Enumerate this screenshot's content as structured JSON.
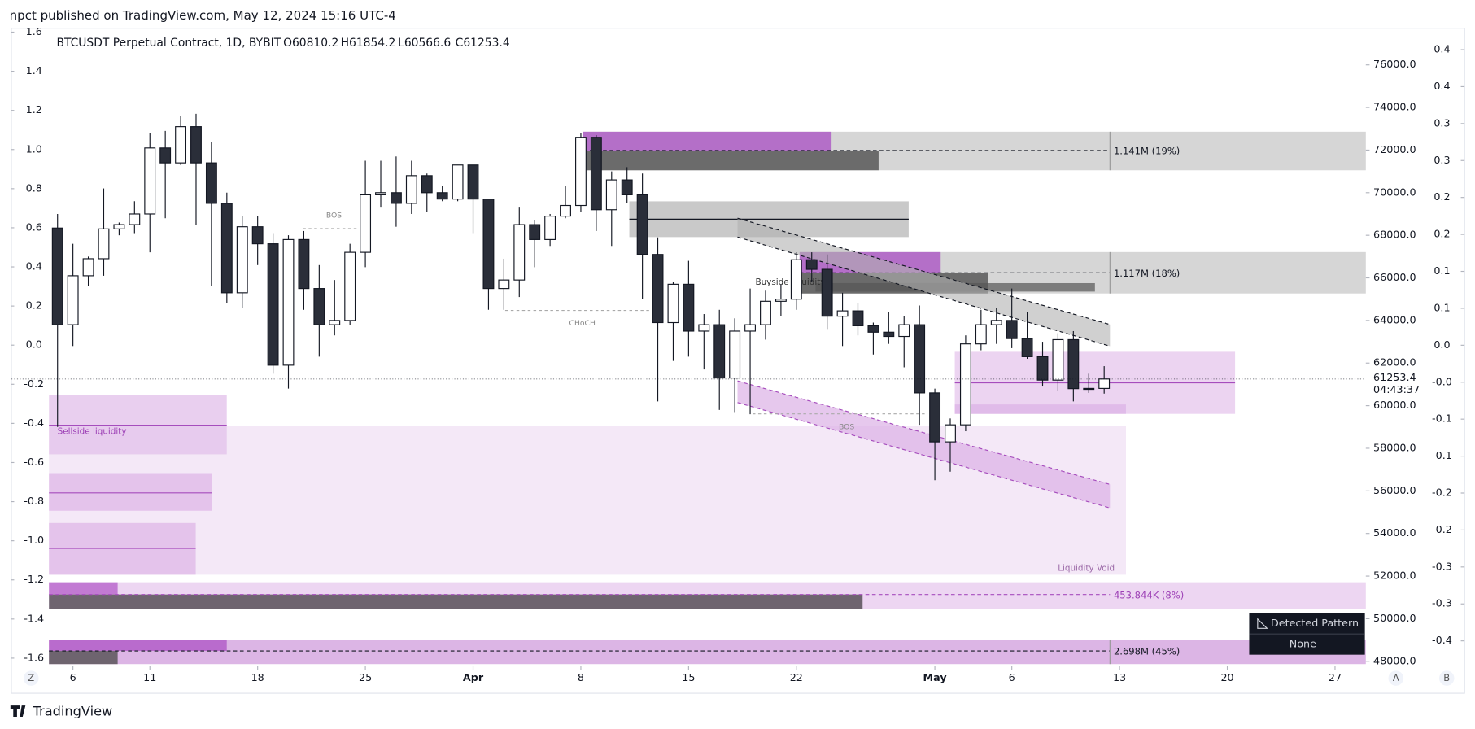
{
  "header": {
    "published": "npct published on TradingView.com, May 12, 2024 15:16 UTC-4",
    "symbol": "BTCUSDT Perpetual Contract, 1D, BYBIT",
    "ohlc": [
      "O60810.2",
      "H61854.2",
      "L60566.6",
      "C61253.4"
    ]
  },
  "chart_data": {
    "type": "candlestick",
    "x": [
      "2024-03-05",
      "2024-03-06",
      "2024-03-07",
      "2024-03-08",
      "2024-03-09",
      "2024-03-10",
      "2024-03-11",
      "2024-03-12",
      "2024-03-13",
      "2024-03-14",
      "2024-03-15",
      "2024-03-16",
      "2024-03-17",
      "2024-03-18",
      "2024-03-19",
      "2024-03-20",
      "2024-03-21",
      "2024-03-22",
      "2024-03-23",
      "2024-03-24",
      "2024-03-25",
      "2024-03-26",
      "2024-03-27",
      "2024-03-28",
      "2024-03-29",
      "2024-03-30",
      "2024-03-31",
      "2024-04-01",
      "2024-04-02",
      "2024-04-03",
      "2024-04-04",
      "2024-04-05",
      "2024-04-06",
      "2024-04-07",
      "2024-04-08",
      "2024-04-09",
      "2024-04-10",
      "2024-04-11",
      "2024-04-12",
      "2024-04-13",
      "2024-04-14",
      "2024-04-15",
      "2024-04-16",
      "2024-04-17",
      "2024-04-18",
      "2024-04-19",
      "2024-04-20",
      "2024-04-21",
      "2024-04-22",
      "2024-04-23",
      "2024-04-24",
      "2024-04-25",
      "2024-04-26",
      "2024-04-27",
      "2024-04-28",
      "2024-04-29",
      "2024-04-30",
      "2024-05-01",
      "2024-05-02",
      "2024-05-03",
      "2024-05-04",
      "2024-05-05",
      "2024-05-06",
      "2024-05-07",
      "2024-05-08",
      "2024-05-09",
      "2024-05-10",
      "2024-05-11",
      "2024-05-12"
    ],
    "open": [
      68340,
      63800,
      66100,
      66900,
      68300,
      68500,
      69000,
      72100,
      71400,
      73100,
      71400,
      69500,
      65300,
      68400,
      67600,
      61900,
      67800,
      65500,
      63800,
      64000,
      67200,
      69900,
      70000,
      69500,
      70800,
      70000,
      69700,
      71300,
      69700,
      65500,
      65900,
      68500,
      67800,
      68900,
      69400,
      72600,
      69200,
      70600,
      69900,
      67100,
      63900,
      65700,
      63500,
      63800,
      61300,
      63500,
      63800,
      64900,
      65000,
      66850,
      66400,
      64200,
      64450,
      63750,
      63450,
      63250,
      63800,
      60600,
      58300,
      59100,
      62900,
      63800,
      64000,
      63150,
      62300,
      61200,
      63100,
      60800,
      60810.2
    ],
    "high": [
      69000,
      67600,
      67000,
      70200,
      68600,
      69600,
      72800,
      72900,
      73600,
      73700,
      72400,
      70000,
      68900,
      68900,
      68100,
      68000,
      68200,
      66600,
      65900,
      67600,
      71500,
      71500,
      71700,
      71500,
      70900,
      70300,
      71300,
      71300,
      69700,
      66900,
      69300,
      68700,
      69000,
      70300,
      72800,
      72700,
      71000,
      71200,
      70900,
      67900,
      65800,
      66800,
      64300,
      64500,
      64100,
      65500,
      65400,
      65700,
      67200,
      67200,
      67100,
      65300,
      64800,
      63900,
      64400,
      64200,
      64700,
      60800,
      59400,
      63300,
      64500,
      64600,
      65500,
      64400,
      63000,
      63400,
      63500,
      61500,
      61854.2
    ],
    "low": [
      59000,
      62800,
      65600,
      66100,
      68000,
      68100,
      67200,
      68800,
      71300,
      68500,
      65600,
      64800,
      64600,
      66600,
      61500,
      60800,
      64500,
      62300,
      63300,
      63800,
      66500,
      69300,
      68400,
      69000,
      69100,
      69600,
      69600,
      68100,
      64500,
      64500,
      65100,
      66500,
      67500,
      68800,
      69100,
      68200,
      67500,
      69500,
      65000,
      60200,
      62100,
      62300,
      61700,
      59800,
      59700,
      59600,
      63100,
      64200,
      64500,
      65800,
      63600,
      62800,
      63300,
      62400,
      62900,
      61800,
      59100,
      56500,
      56900,
      58800,
      62600,
      62900,
      62700,
      62200,
      60900,
      60700,
      60200,
      60600,
      60566.6
    ],
    "close": [
      63800,
      66100,
      66900,
      68300,
      68500,
      69000,
      72100,
      71400,
      73100,
      71400,
      69500,
      65300,
      68400,
      67600,
      61900,
      67800,
      65500,
      63800,
      64000,
      67200,
      69900,
      70000,
      69500,
      70800,
      70000,
      69700,
      71300,
      69700,
      65500,
      65900,
      68500,
      67800,
      68900,
      69400,
      72600,
      69200,
      70600,
      69900,
      67100,
      63900,
      65700,
      63500,
      63800,
      61300,
      63500,
      63800,
      64900,
      65000,
      66850,
      66400,
      64200,
      64450,
      63750,
      63450,
      63250,
      63800,
      60600,
      58300,
      59100,
      62900,
      63800,
      64000,
      63150,
      62300,
      61200,
      63100,
      60800,
      60810.2,
      61253.4
    ],
    "up_color": "#ffffff",
    "down_color": "#2a2e39",
    "wick_color": "#131722",
    "countdown": "04:43:37",
    "xlim": [
      "2024-03-02",
      "2024-05-29"
    ],
    "xticks": [
      {
        "value": "2024-03-06",
        "label": "6"
      },
      {
        "value": "2024-03-11",
        "label": "11"
      },
      {
        "value": "2024-03-18",
        "label": "18"
      },
      {
        "value": "2024-03-25",
        "label": "25"
      },
      {
        "value": "2024-04-01",
        "label": "Apr"
      },
      {
        "value": "2024-04-08",
        "label": "8"
      },
      {
        "value": "2024-04-15",
        "label": "15"
      },
      {
        "value": "2024-04-22",
        "label": "22"
      },
      {
        "value": "2024-05-01",
        "label": "May"
      },
      {
        "value": "2024-05-06",
        "label": "6"
      },
      {
        "value": "2024-05-13",
        "label": "13"
      },
      {
        "value": "2024-05-20",
        "label": "20"
      },
      {
        "value": "2024-05-27",
        "label": "27"
      }
    ],
    "ylim": [
      47780,
      77720
    ],
    "yticks": [
      {
        "value": 48000,
        "label": "48000.0"
      },
      {
        "value": 50000,
        "label": "50000.0"
      },
      {
        "value": 52000,
        "label": "52000.0"
      },
      {
        "value": 54000,
        "label": "54000.0"
      },
      {
        "value": 56000,
        "label": "56000.0"
      },
      {
        "value": 58000,
        "label": "58000.0"
      },
      {
        "value": 60000,
        "label": "60000.0"
      },
      {
        "value": 62000,
        "label": "62000.0"
      },
      {
        "value": 64000,
        "label": "64000.0"
      },
      {
        "value": 66000,
        "label": "66000.0"
      },
      {
        "value": 68000,
        "label": "68000.0"
      },
      {
        "value": 70000,
        "label": "70000.0"
      },
      {
        "value": 72000,
        "label": "72000.0"
      },
      {
        "value": 74000,
        "label": "74000.0"
      },
      {
        "value": 76000,
        "label": "76000.0"
      }
    ],
    "y2lim": [
      -1.64,
      1.62
    ],
    "y2ticks": [
      1.6,
      1.4,
      1.2,
      {
        "value": 1.0,
        "label": "1.0"
      },
      0.8,
      0.6,
      0.4,
      0.2,
      {
        "value": 0,
        "label": "0.0"
      },
      -0.2,
      -0.4,
      -0.6,
      -0.8,
      {
        "value": -1.0,
        "label": "-1.0"
      },
      -1.2,
      -1.4,
      -1.6
    ],
    "y3lim": [
      -0.434,
      0.429
    ],
    "y3ticks": [
      0.4,
      {
        "value": 0.35,
        "label": "0.4"
      },
      0.3,
      {
        "value": 0.25,
        "label": "0.3"
      },
      0.2,
      {
        "value": 0.15,
        "label": "0.2"
      },
      0.1,
      {
        "value": 0.05,
        "label": "0.1"
      },
      {
        "value": 0,
        "label": "0.0"
      },
      {
        "value": -0.05,
        "label": "-0.0"
      },
      -0.1,
      {
        "value": -0.15,
        "label": "-0.1"
      },
      -0.2,
      {
        "value": -0.25,
        "label": "-0.2"
      },
      -0.3,
      {
        "value": -0.35,
        "label": "-0.3"
      },
      -0.4
    ],
    "annotations": {
      "bos_1": "BOS",
      "choch": "CHoCH",
      "buyside": "Buyside liquidity",
      "bos_2": "BOS",
      "sellside": "Sellside liquidity",
      "void": "Liquidity Void",
      "vol_1": "1.141M (19%)",
      "vol_2": "1.117M (18%)",
      "vol_3": "453.844K (8%)",
      "vol_4": "2.698M (45%)"
    }
  },
  "pattern_panel": {
    "title": "Detected Pattern",
    "value": "None"
  },
  "buttons": [
    "Z",
    "A",
    "B"
  ],
  "footer": "TradingView"
}
